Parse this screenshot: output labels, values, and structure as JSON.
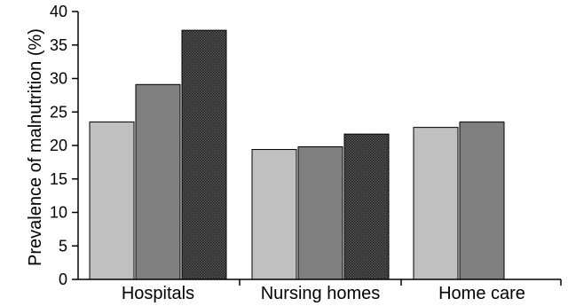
{
  "chart_data": {
    "type": "bar",
    "title": "",
    "xlabel": "",
    "ylabel": "Prevalence of malnutrition (%)",
    "ylim": [
      0,
      40
    ],
    "yticks": [
      0,
      5,
      10,
      15,
      20,
      25,
      30,
      35,
      40
    ],
    "grid": false,
    "legend": "none",
    "categories": [
      "Hospitals",
      "Nursing homes",
      "Home care"
    ],
    "series": [
      {
        "values": [
          23.5,
          19.4,
          22.7
        ],
        "color": "#c0c0c0",
        "pattern": "solid"
      },
      {
        "values": [
          29.1,
          19.8,
          23.5
        ],
        "color": "#808080",
        "pattern": "solid"
      },
      {
        "values": [
          37.2,
          21.7,
          null
        ],
        "color": "#3c3c3c",
        "pattern": "dotted"
      }
    ]
  }
}
